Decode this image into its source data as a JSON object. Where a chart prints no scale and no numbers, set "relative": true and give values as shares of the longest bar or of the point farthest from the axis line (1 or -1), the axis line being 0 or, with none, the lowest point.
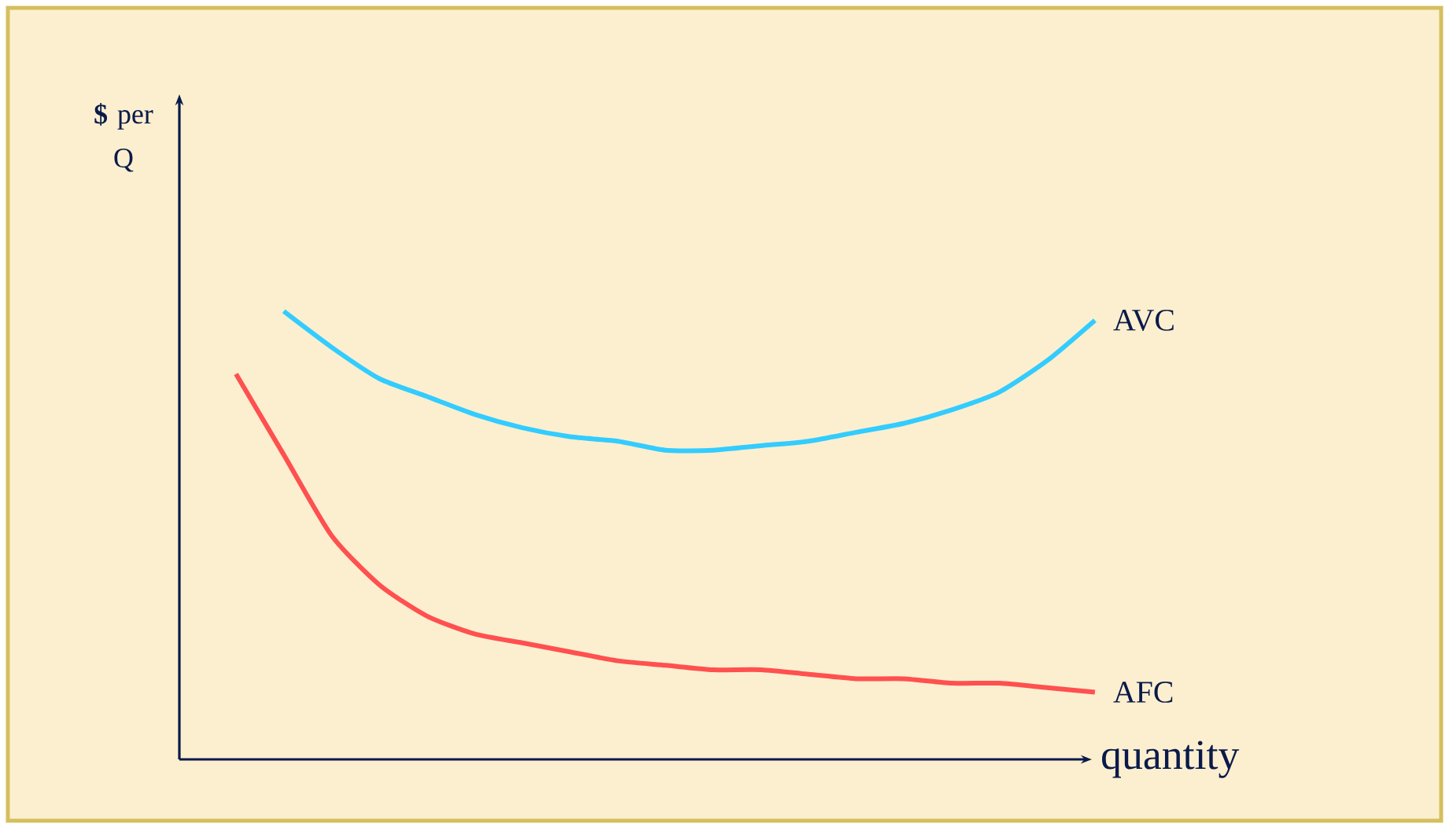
{
  "chart_data": {
    "type": "line",
    "relative": true,
    "xlabel": "quantity",
    "annotations": [
      "**$** per Q"
    ],
    "legend": false,
    "categories": [
      null,
      null,
      null,
      null,
      null,
      null,
      null,
      null,
      null,
      null,
      null,
      null,
      null,
      null,
      null,
      null,
      null,
      null,
      null
    ],
    "series": [
      {
        "name": "AVC",
        "color": "#33ccff",
        "values": [
          null,
          1.0,
          0.92,
          0.85,
          0.81,
          0.77,
          0.74,
          0.72,
          0.71,
          0.69,
          0.69,
          0.7,
          0.71,
          0.73,
          0.75,
          0.78,
          0.82,
          0.89,
          0.98
        ]
      },
      {
        "name": "AFC",
        "color": "#ff5050",
        "values": [
          0.86,
          0.68,
          0.5,
          0.39,
          0.32,
          0.28,
          0.26,
          0.24,
          0.22,
          0.21,
          0.2,
          0.2,
          0.19,
          0.18,
          0.18,
          0.17,
          0.17,
          0.16,
          0.15
        ]
      }
    ]
  }
}
